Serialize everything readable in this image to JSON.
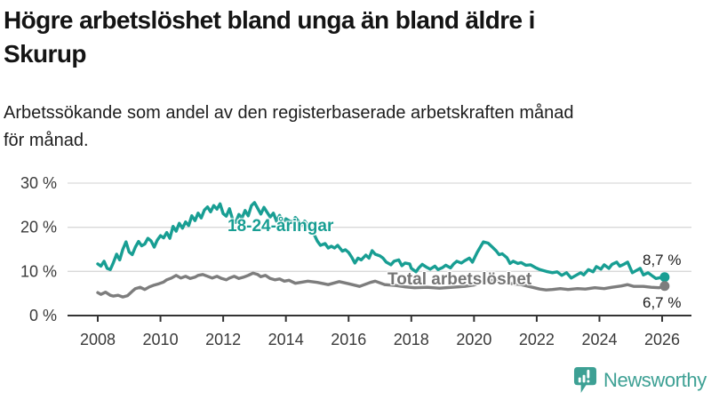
{
  "header": {
    "title_lines": [
      "Högre arbetslöshet bland unga än bland äldre i",
      "Skurup"
    ],
    "subtitle_lines": [
      "Arbetssökande som andel av den registerbaserade arbetskraften månad",
      "för månad."
    ]
  },
  "footer": {
    "brand": "Newsworthy"
  },
  "colors": {
    "young_line": "#189e93",
    "total_line": "#7d7d7d",
    "axis": "#333333",
    "gridline": "#d9d9d9",
    "tick_label": "#3a3a3a",
    "logo": "#3da094"
  },
  "chart_data": {
    "type": "line",
    "title": "Högre arbetslöshet bland unga än bland äldre i Skurup",
    "xlabel": "",
    "ylabel": "",
    "grid": "horizontal",
    "xlim": [
      2007.1,
      2026.9
    ],
    "ylim": [
      0,
      30
    ],
    "x_ticks": [
      2008,
      2010,
      2012,
      2014,
      2016,
      2018,
      2020,
      2022,
      2024,
      2026
    ],
    "y_ticks": [
      {
        "value": 0,
        "label": "0 %"
      },
      {
        "value": 10,
        "label": "10 %"
      },
      {
        "value": 20,
        "label": "20 %"
      },
      {
        "value": 30,
        "label": "30 %"
      }
    ],
    "series": [
      {
        "name": "18-24-åringar",
        "color": "#189e93",
        "end_value": 8.7,
        "end_label": "8,7 %",
        "points": [
          [
            2008.0,
            11.7
          ],
          [
            2008.1,
            11.2
          ],
          [
            2008.2,
            12.3
          ],
          [
            2008.3,
            10.7
          ],
          [
            2008.4,
            10.4
          ],
          [
            2008.5,
            12.0
          ],
          [
            2008.6,
            13.9
          ],
          [
            2008.7,
            12.6
          ],
          [
            2008.8,
            15.0
          ],
          [
            2008.9,
            16.7
          ],
          [
            2009.0,
            14.4
          ],
          [
            2009.1,
            13.8
          ],
          [
            2009.2,
            15.5
          ],
          [
            2009.3,
            16.8
          ],
          [
            2009.4,
            15.8
          ],
          [
            2009.5,
            16.2
          ],
          [
            2009.6,
            17.5
          ],
          [
            2009.7,
            16.9
          ],
          [
            2009.8,
            15.5
          ],
          [
            2009.9,
            17.1
          ],
          [
            2010.0,
            18.1
          ],
          [
            2010.1,
            17.6
          ],
          [
            2010.2,
            18.8
          ],
          [
            2010.3,
            17.5
          ],
          [
            2010.4,
            20.2
          ],
          [
            2010.5,
            19.1
          ],
          [
            2010.6,
            20.9
          ],
          [
            2010.7,
            19.8
          ],
          [
            2010.8,
            21.2
          ],
          [
            2010.9,
            20.4
          ],
          [
            2011.0,
            22.6
          ],
          [
            2011.1,
            21.5
          ],
          [
            2011.2,
            23.2
          ],
          [
            2011.3,
            22.1
          ],
          [
            2011.4,
            23.9
          ],
          [
            2011.5,
            24.6
          ],
          [
            2011.6,
            23.5
          ],
          [
            2011.7,
            24.9
          ],
          [
            2011.8,
            24.1
          ],
          [
            2011.9,
            25.3
          ],
          [
            2012.0,
            23.1
          ],
          [
            2012.1,
            22.5
          ],
          [
            2012.2,
            24.2
          ],
          [
            2012.3,
            21.8
          ],
          [
            2012.4,
            21.1
          ],
          [
            2012.5,
            22.9
          ],
          [
            2012.6,
            22.1
          ],
          [
            2012.7,
            23.8
          ],
          [
            2012.8,
            22.6
          ],
          [
            2012.9,
            24.9
          ],
          [
            2013.0,
            25.6
          ],
          [
            2013.1,
            24.3
          ],
          [
            2013.2,
            23.0
          ],
          [
            2013.3,
            24.5
          ],
          [
            2013.4,
            23.4
          ],
          [
            2013.5,
            22.3
          ],
          [
            2013.6,
            23.2
          ],
          [
            2013.7,
            21.4
          ],
          [
            2013.8,
            22.7
          ],
          [
            2013.9,
            20.9
          ],
          [
            2014.0,
            21.9
          ],
          [
            2014.2,
            21.1
          ],
          [
            2014.3,
            22.2
          ],
          [
            2014.5,
            20.5
          ],
          [
            2014.6,
            21.4
          ],
          [
            2014.8,
            19.7
          ],
          [
            2014.9,
            18.4
          ],
          [
            2015.0,
            16.9
          ],
          [
            2015.1,
            15.9
          ],
          [
            2015.25,
            16.3
          ],
          [
            2015.35,
            15.3
          ],
          [
            2015.45,
            15.7
          ],
          [
            2015.55,
            15.3
          ],
          [
            2015.65,
            15.9
          ],
          [
            2015.8,
            14.6
          ],
          [
            2015.9,
            14.9
          ],
          [
            2016.0,
            14.3
          ],
          [
            2016.1,
            13.2
          ],
          [
            2016.2,
            11.9
          ],
          [
            2016.3,
            13.0
          ],
          [
            2016.4,
            12.6
          ],
          [
            2016.55,
            13.7
          ],
          [
            2016.65,
            13.0
          ],
          [
            2016.75,
            14.7
          ],
          [
            2016.85,
            13.9
          ],
          [
            2017.0,
            13.5
          ],
          [
            2017.1,
            13.0
          ],
          [
            2017.2,
            12.1
          ],
          [
            2017.35,
            11.5
          ],
          [
            2017.45,
            12.3
          ],
          [
            2017.6,
            12.6
          ],
          [
            2017.7,
            11.3
          ],
          [
            2017.8,
            11.9
          ],
          [
            2017.95,
            11.7
          ],
          [
            2018.0,
            10.7
          ],
          [
            2018.15,
            9.9
          ],
          [
            2018.25,
            10.9
          ],
          [
            2018.35,
            11.6
          ],
          [
            2018.5,
            10.9
          ],
          [
            2018.6,
            10.5
          ],
          [
            2018.75,
            11.2
          ],
          [
            2018.85,
            10.4
          ],
          [
            2019.0,
            10.9
          ],
          [
            2019.1,
            11.4
          ],
          [
            2019.25,
            10.8
          ],
          [
            2019.35,
            11.7
          ],
          [
            2019.45,
            12.3
          ],
          [
            2019.6,
            11.9
          ],
          [
            2019.7,
            12.4
          ],
          [
            2019.85,
            13.0
          ],
          [
            2019.95,
            12.1
          ],
          [
            2020.1,
            14.3
          ],
          [
            2020.2,
            15.5
          ],
          [
            2020.3,
            16.7
          ],
          [
            2020.45,
            16.4
          ],
          [
            2020.6,
            15.4
          ],
          [
            2020.7,
            14.7
          ],
          [
            2020.8,
            13.8
          ],
          [
            2020.9,
            14.0
          ],
          [
            2021.05,
            13.1
          ],
          [
            2021.15,
            11.8
          ],
          [
            2021.25,
            12.3
          ],
          [
            2021.4,
            11.8
          ],
          [
            2021.5,
            12.0
          ],
          [
            2021.65,
            11.4
          ],
          [
            2021.8,
            11.5
          ],
          [
            2021.95,
            10.9
          ],
          [
            2022.1,
            10.4
          ],
          [
            2022.3,
            10.0
          ],
          [
            2022.5,
            9.7
          ],
          [
            2022.65,
            9.9
          ],
          [
            2022.8,
            9.1
          ],
          [
            2022.95,
            9.7
          ],
          [
            2023.1,
            8.5
          ],
          [
            2023.25,
            9.1
          ],
          [
            2023.4,
            9.7
          ],
          [
            2023.5,
            9.2
          ],
          [
            2023.65,
            10.4
          ],
          [
            2023.8,
            9.9
          ],
          [
            2023.9,
            11.1
          ],
          [
            2024.05,
            10.5
          ],
          [
            2024.15,
            11.5
          ],
          [
            2024.3,
            10.7
          ],
          [
            2024.4,
            11.6
          ],
          [
            2024.55,
            12.1
          ],
          [
            2024.65,
            11.2
          ],
          [
            2024.8,
            11.7
          ],
          [
            2024.9,
            12.1
          ],
          [
            2025.05,
            9.7
          ],
          [
            2025.15,
            10.1
          ],
          [
            2025.3,
            10.7
          ],
          [
            2025.4,
            9.2
          ],
          [
            2025.55,
            9.7
          ],
          [
            2025.7,
            8.9
          ],
          [
            2025.8,
            8.4
          ],
          [
            2025.95,
            8.6
          ],
          [
            2026.08,
            8.7
          ]
        ]
      },
      {
        "name": "Total arbetslöshet",
        "color": "#7d7d7d",
        "end_value": 6.7,
        "end_label": "6,7 %",
        "points": [
          [
            2008.0,
            5.2
          ],
          [
            2008.1,
            4.8
          ],
          [
            2008.25,
            5.3
          ],
          [
            2008.4,
            4.6
          ],
          [
            2008.5,
            4.4
          ],
          [
            2008.65,
            4.6
          ],
          [
            2008.8,
            4.2
          ],
          [
            2008.95,
            4.5
          ],
          [
            2009.1,
            5.5
          ],
          [
            2009.2,
            6.1
          ],
          [
            2009.35,
            6.4
          ],
          [
            2009.5,
            5.9
          ],
          [
            2009.65,
            6.5
          ],
          [
            2009.8,
            6.9
          ],
          [
            2009.95,
            7.2
          ],
          [
            2010.1,
            7.6
          ],
          [
            2010.2,
            8.1
          ],
          [
            2010.35,
            8.5
          ],
          [
            2010.5,
            9.1
          ],
          [
            2010.65,
            8.5
          ],
          [
            2010.8,
            8.9
          ],
          [
            2010.95,
            8.4
          ],
          [
            2011.1,
            8.7
          ],
          [
            2011.2,
            9.1
          ],
          [
            2011.35,
            9.3
          ],
          [
            2011.5,
            8.9
          ],
          [
            2011.65,
            8.5
          ],
          [
            2011.8,
            8.9
          ],
          [
            2011.95,
            8.4
          ],
          [
            2012.1,
            8.1
          ],
          [
            2012.2,
            8.5
          ],
          [
            2012.35,
            8.9
          ],
          [
            2012.5,
            8.4
          ],
          [
            2012.65,
            8.7
          ],
          [
            2012.8,
            9.1
          ],
          [
            2012.95,
            9.6
          ],
          [
            2013.1,
            9.3
          ],
          [
            2013.2,
            8.8
          ],
          [
            2013.35,
            9.1
          ],
          [
            2013.5,
            8.4
          ],
          [
            2013.65,
            8.1
          ],
          [
            2013.8,
            8.3
          ],
          [
            2013.95,
            7.8
          ],
          [
            2014.1,
            8.0
          ],
          [
            2014.3,
            7.3
          ],
          [
            2014.7,
            7.8
          ],
          [
            2015.0,
            7.5
          ],
          [
            2015.35,
            7.0
          ],
          [
            2015.7,
            7.7
          ],
          [
            2016.0,
            7.2
          ],
          [
            2016.35,
            6.6
          ],
          [
            2016.7,
            7.5
          ],
          [
            2016.85,
            7.8
          ],
          [
            2017.15,
            7.0
          ],
          [
            2017.5,
            6.8
          ],
          [
            2017.8,
            6.5
          ],
          [
            2018.1,
            6.3
          ],
          [
            2018.5,
            6.4
          ],
          [
            2018.9,
            6.2
          ],
          [
            2019.3,
            6.4
          ],
          [
            2019.7,
            6.6
          ],
          [
            2020.0,
            6.9
          ],
          [
            2020.3,
            7.8
          ],
          [
            2020.6,
            8.0
          ],
          [
            2020.9,
            7.7
          ],
          [
            2021.2,
            7.2
          ],
          [
            2021.5,
            7.0
          ],
          [
            2021.8,
            6.5
          ],
          [
            2022.1,
            6.0
          ],
          [
            2022.3,
            5.8
          ],
          [
            2022.5,
            5.9
          ],
          [
            2022.75,
            6.1
          ],
          [
            2023.0,
            5.9
          ],
          [
            2023.3,
            6.1
          ],
          [
            2023.55,
            6.0
          ],
          [
            2023.85,
            6.3
          ],
          [
            2024.15,
            6.1
          ],
          [
            2024.4,
            6.4
          ],
          [
            2024.7,
            6.7
          ],
          [
            2024.9,
            7.0
          ],
          [
            2025.1,
            6.6
          ],
          [
            2025.4,
            6.6
          ],
          [
            2025.65,
            6.4
          ],
          [
            2025.9,
            6.3
          ],
          [
            2026.08,
            6.7
          ]
        ]
      }
    ]
  }
}
